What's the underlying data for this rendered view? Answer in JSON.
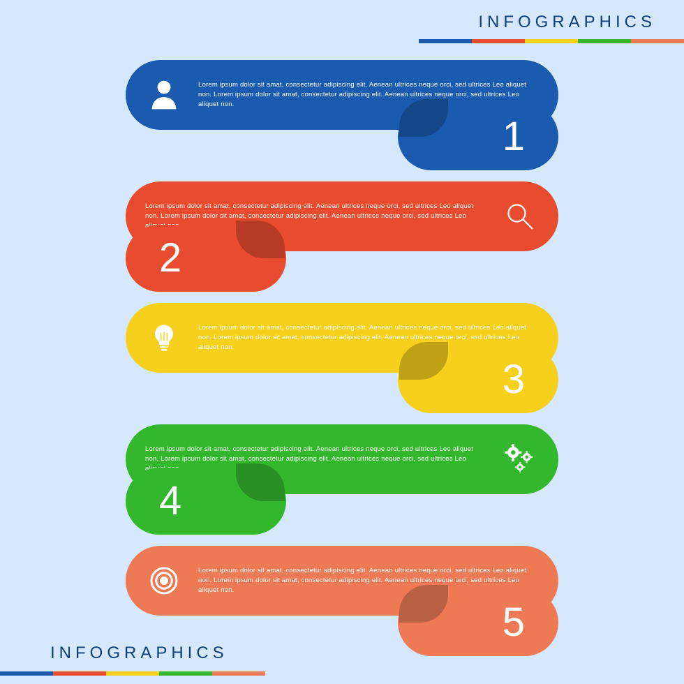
{
  "type": "infographic",
  "background_color": "#d6e8fb",
  "title": {
    "text": "INFOGRAPHICS",
    "color": "#0f3f7a",
    "fontsize": 24
  },
  "colorbar": {
    "segment_width": 76,
    "segment_height": 6,
    "colors": [
      "#1a5bb0",
      "#e94b2f",
      "#f7cf1d",
      "#33b82d",
      "#ee7a55"
    ]
  },
  "body_text": "Lorem ipsum dolor sit amat, consectetur adipiscing elit. Aenean ultrices neque orci, sed ultrices Leo aliquet non. Lorem ipsum dolor sit amat, consectetur adipiscing elit. Aenean ultrices neque orci, sed ultrices Leo aliquet non.",
  "text_color": "#ffffff",
  "number_color": "#ffffff",
  "number_fontsize": 58,
  "steps": [
    {
      "number": "1",
      "color": "#1a5bb0",
      "icon": "person",
      "icon_side": "left",
      "tab_side": "right"
    },
    {
      "number": "2",
      "color": "#e94b2f",
      "icon": "magnifier",
      "icon_side": "right",
      "tab_side": "left"
    },
    {
      "number": "3",
      "color": "#f7cf1d",
      "icon": "lightbulb",
      "icon_side": "left",
      "tab_side": "right"
    },
    {
      "number": "4",
      "color": "#33b82d",
      "icon": "gears",
      "icon_side": "right",
      "tab_side": "left"
    },
    {
      "number": "5",
      "color": "#ee7a55",
      "icon": "target",
      "icon_side": "left",
      "tab_side": "right"
    }
  ]
}
